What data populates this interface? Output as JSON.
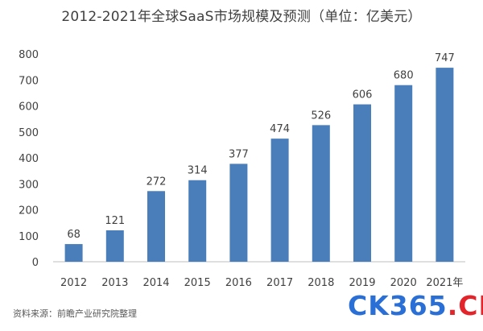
{
  "chart_data": {
    "type": "bar",
    "title": "2012-2021年全球SaaS市场规模及预测（单位：亿美元）",
    "categories": [
      "2012",
      "2013",
      "2014",
      "2015",
      "2016",
      "2017",
      "2018",
      "2019",
      "2020",
      "2021年"
    ],
    "values": [
      68,
      121,
      272,
      314,
      377,
      474,
      526,
      606,
      680,
      747
    ],
    "value_labels": [
      "68",
      "121",
      "272",
      "314",
      "377",
      "474",
      "526",
      "606",
      "680",
      "747"
    ],
    "ylim": [
      0,
      800
    ],
    "yticks": [
      0,
      100,
      200,
      300,
      400,
      500,
      600,
      700,
      800
    ],
    "ytick_labels": [
      "0",
      "100",
      "200",
      "300",
      "400",
      "500",
      "600",
      "700",
      "800"
    ],
    "xlabel": "",
    "ylabel": "",
    "grid": false,
    "bar_color": "#4a7ebb",
    "source": "资料来源：前瞻产业研究院整理"
  },
  "watermark": {
    "part1": "CK365",
    "part2": ".CN",
    "color1": "#2a6fd6",
    "color2": "#e3242b"
  }
}
